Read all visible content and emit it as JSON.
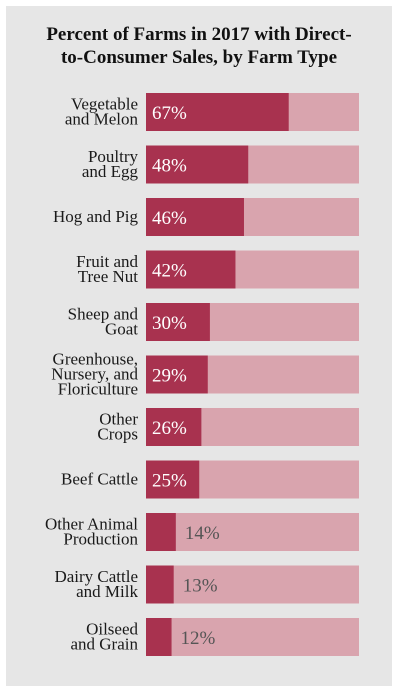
{
  "title_lines": [
    "Percent of Farms in 2017 with Direct-",
    "to-Consumer Sales, by Farm Type"
  ],
  "chart_data": {
    "type": "bar",
    "orientation": "horizontal",
    "title": "Percent of Farms in 2017 with Direct-to-Consumer Sales, by Farm Type",
    "categories": [
      [
        "Vegetable",
        "and Melon"
      ],
      [
        "Poultry",
        "and Egg"
      ],
      [
        "Hog and Pig"
      ],
      [
        "Fruit and",
        "Tree Nut"
      ],
      [
        "Sheep and",
        "Goat"
      ],
      [
        "Greenhouse,",
        "Nursery, and",
        "Floriculture"
      ],
      [
        "Other",
        "Crops"
      ],
      [
        "Beef Cattle"
      ],
      [
        "Other Animal",
        "Production"
      ],
      [
        "Dairy Cattle",
        "and Milk"
      ],
      [
        "Oilseed",
        "and Grain"
      ]
    ],
    "values": [
      67,
      48,
      46,
      42,
      30,
      29,
      26,
      25,
      14,
      13,
      12
    ],
    "value_labels": [
      "67%",
      "48%",
      "46%",
      "42%",
      "30%",
      "29%",
      "26%",
      "25%",
      "14%",
      "13%",
      "12%"
    ],
    "xlim": [
      0,
      100
    ],
    "colors": {
      "bar": "#a8324f",
      "track": "#d9a4ae",
      "label_inside": "#ffffff",
      "label_outside": "#555555"
    }
  }
}
